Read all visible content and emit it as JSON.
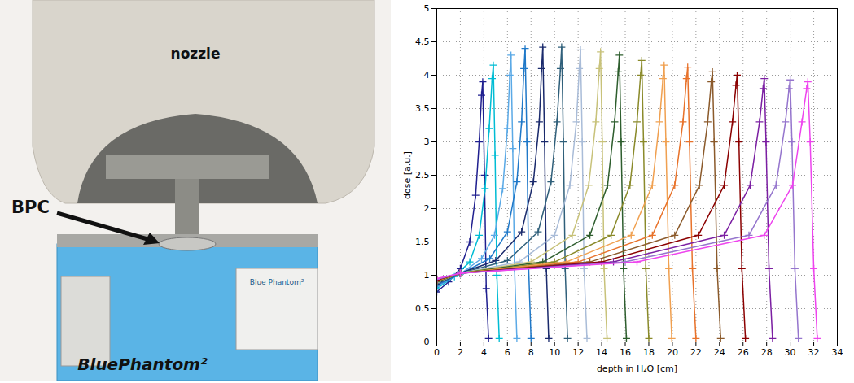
{
  "photo": {
    "nozzle_label": "nozzle",
    "arrow_label": "BPC",
    "phantom_label": "BluePhantom²",
    "box_label": "Blue Phantom²"
  },
  "chart_data": {
    "type": "line",
    "x_label": "depth in H₂O [cm]",
    "y_label": "dose [a.u.]",
    "xlim": [
      0,
      34
    ],
    "xticks": [
      0,
      2,
      4,
      6,
      8,
      10,
      12,
      14,
      16,
      18,
      20,
      22,
      24,
      26,
      28,
      30,
      32,
      34
    ],
    "ylim": [
      0,
      5
    ],
    "yticks": [
      0,
      0.5,
      1,
      1.5,
      2,
      2.5,
      3,
      3.5,
      4,
      4.5,
      5
    ],
    "grid": true,
    "marker": "plus",
    "series": [
      {
        "color": "#1f1f8f",
        "x": [
          0,
          1,
          2,
          2.8,
          3.3,
          3.6,
          3.8,
          3.9,
          4.05,
          4.2,
          4.4
        ],
        "values": [
          0.75,
          0.9,
          1.1,
          1.5,
          2.2,
          3.0,
          3.7,
          3.9,
          2.5,
          0.8,
          0.05
        ]
      },
      {
        "color": "#00bcd4",
        "x": [
          0,
          1.5,
          2.8,
          3.6,
          4.1,
          4.45,
          4.7,
          4.8,
          4.95,
          5.1,
          5.3
        ],
        "values": [
          0.8,
          0.98,
          1.2,
          1.6,
          2.3,
          3.2,
          3.95,
          4.15,
          2.8,
          1.0,
          0.05
        ]
      },
      {
        "color": "#5aa9e6",
        "x": [
          0,
          2,
          3.8,
          4.9,
          5.6,
          6.0,
          6.2,
          6.3,
          6.45,
          6.6,
          6.8
        ],
        "values": [
          0.83,
          1.02,
          1.25,
          1.6,
          2.3,
          3.2,
          4.0,
          4.3,
          2.9,
          1.1,
          0.05
        ]
      },
      {
        "color": "#1f78c8",
        "x": [
          0,
          2,
          4.5,
          6.0,
          6.8,
          7.2,
          7.4,
          7.5,
          7.65,
          7.8,
          8.0
        ],
        "values": [
          0.85,
          1.02,
          1.25,
          1.65,
          2.4,
          3.3,
          4.1,
          4.4,
          3.0,
          1.1,
          0.05
        ]
      },
      {
        "color": "#1a2a6c",
        "x": [
          0,
          2,
          5,
          7.2,
          8.2,
          8.7,
          8.9,
          9.0,
          9.15,
          9.3,
          9.5
        ],
        "values": [
          0.87,
          1.03,
          1.22,
          1.65,
          2.4,
          3.3,
          4.1,
          4.42,
          3.0,
          1.1,
          0.05
        ]
      },
      {
        "color": "#2f5f7a",
        "x": [
          0,
          2,
          6,
          8.6,
          9.7,
          10.2,
          10.5,
          10.6,
          10.75,
          10.9,
          11.1
        ],
        "values": [
          0.88,
          1.03,
          1.22,
          1.65,
          2.4,
          3.3,
          4.1,
          4.42,
          3.0,
          1.1,
          0.05
        ]
      },
      {
        "color": "#a9bcd8",
        "x": [
          0,
          2,
          7,
          10,
          11.3,
          11.85,
          12.1,
          12.2,
          12.35,
          12.5,
          12.75
        ],
        "values": [
          0.89,
          1.03,
          1.2,
          1.6,
          2.35,
          3.3,
          4.1,
          4.38,
          3.0,
          1.1,
          0.05
        ]
      },
      {
        "color": "#c8c27a",
        "x": [
          0,
          2,
          8,
          11.5,
          12.9,
          13.5,
          13.8,
          13.9,
          14.05,
          14.2,
          14.45
        ],
        "values": [
          0.9,
          1.03,
          1.2,
          1.6,
          2.35,
          3.3,
          4.1,
          4.35,
          3.0,
          1.1,
          0.05
        ]
      },
      {
        "color": "#2e5e2e",
        "x": [
          0,
          2,
          9,
          13,
          14.5,
          15.1,
          15.4,
          15.5,
          15.65,
          15.85,
          16.1
        ],
        "values": [
          0.9,
          1.03,
          1.2,
          1.6,
          2.35,
          3.3,
          4.05,
          4.3,
          3.0,
          1.1,
          0.05
        ]
      },
      {
        "color": "#8a8a2a",
        "x": [
          0,
          2,
          10,
          14.8,
          16.4,
          17.0,
          17.3,
          17.4,
          17.55,
          17.75,
          18.0
        ],
        "values": [
          0.91,
          1.03,
          1.2,
          1.6,
          2.35,
          3.3,
          4.0,
          4.22,
          3.0,
          1.1,
          0.05
        ]
      },
      {
        "color": "#f0a050",
        "x": [
          0,
          2,
          11,
          16.5,
          18.3,
          18.9,
          19.2,
          19.3,
          19.45,
          19.7,
          19.95
        ],
        "values": [
          0.92,
          1.03,
          1.2,
          1.6,
          2.35,
          3.3,
          3.95,
          4.15,
          3.0,
          1.1,
          0.05
        ]
      },
      {
        "color": "#e8722a",
        "x": [
          0,
          2,
          12,
          18.3,
          20.2,
          20.9,
          21.2,
          21.3,
          21.45,
          21.7,
          22.0
        ],
        "values": [
          0.92,
          1.03,
          1.2,
          1.6,
          2.35,
          3.3,
          3.95,
          4.12,
          3.0,
          1.1,
          0.05
        ]
      },
      {
        "color": "#8b5a2b",
        "x": [
          0,
          2,
          13,
          20.2,
          22.3,
          23.0,
          23.3,
          23.4,
          23.55,
          23.8,
          24.1
        ],
        "values": [
          0.93,
          1.03,
          1.2,
          1.6,
          2.35,
          3.3,
          3.9,
          4.05,
          3.0,
          1.1,
          0.05
        ]
      },
      {
        "color": "#8b0000",
        "x": [
          0,
          2,
          14,
          22.2,
          24.4,
          25.1,
          25.4,
          25.5,
          25.65,
          25.9,
          26.2
        ],
        "values": [
          0.93,
          1.03,
          1.2,
          1.6,
          2.35,
          3.3,
          3.85,
          4.0,
          3.0,
          1.1,
          0.05
        ]
      },
      {
        "color": "#7b1fa2",
        "x": [
          0,
          2,
          15,
          24.4,
          26.6,
          27.4,
          27.7,
          27.8,
          27.95,
          28.2,
          28.5
        ],
        "values": [
          0.94,
          1.03,
          1.2,
          1.6,
          2.35,
          3.3,
          3.8,
          3.95,
          3.0,
          1.1,
          0.05
        ]
      },
      {
        "color": "#9575cd",
        "x": [
          0,
          2,
          16,
          26.5,
          28.8,
          29.6,
          29.9,
          30.0,
          30.15,
          30.4,
          30.7
        ],
        "values": [
          0.94,
          1.03,
          1.2,
          1.6,
          2.35,
          3.3,
          3.8,
          3.93,
          3.0,
          1.1,
          0.05
        ]
      },
      {
        "color": "#ee44ee",
        "x": [
          0,
          2,
          17,
          27.8,
          30.2,
          31.0,
          31.4,
          31.5,
          31.7,
          32.0,
          32.3
        ],
        "values": [
          0.95,
          1.03,
          1.2,
          1.6,
          2.35,
          3.3,
          3.8,
          3.9,
          3.0,
          1.1,
          0.05
        ]
      }
    ]
  }
}
